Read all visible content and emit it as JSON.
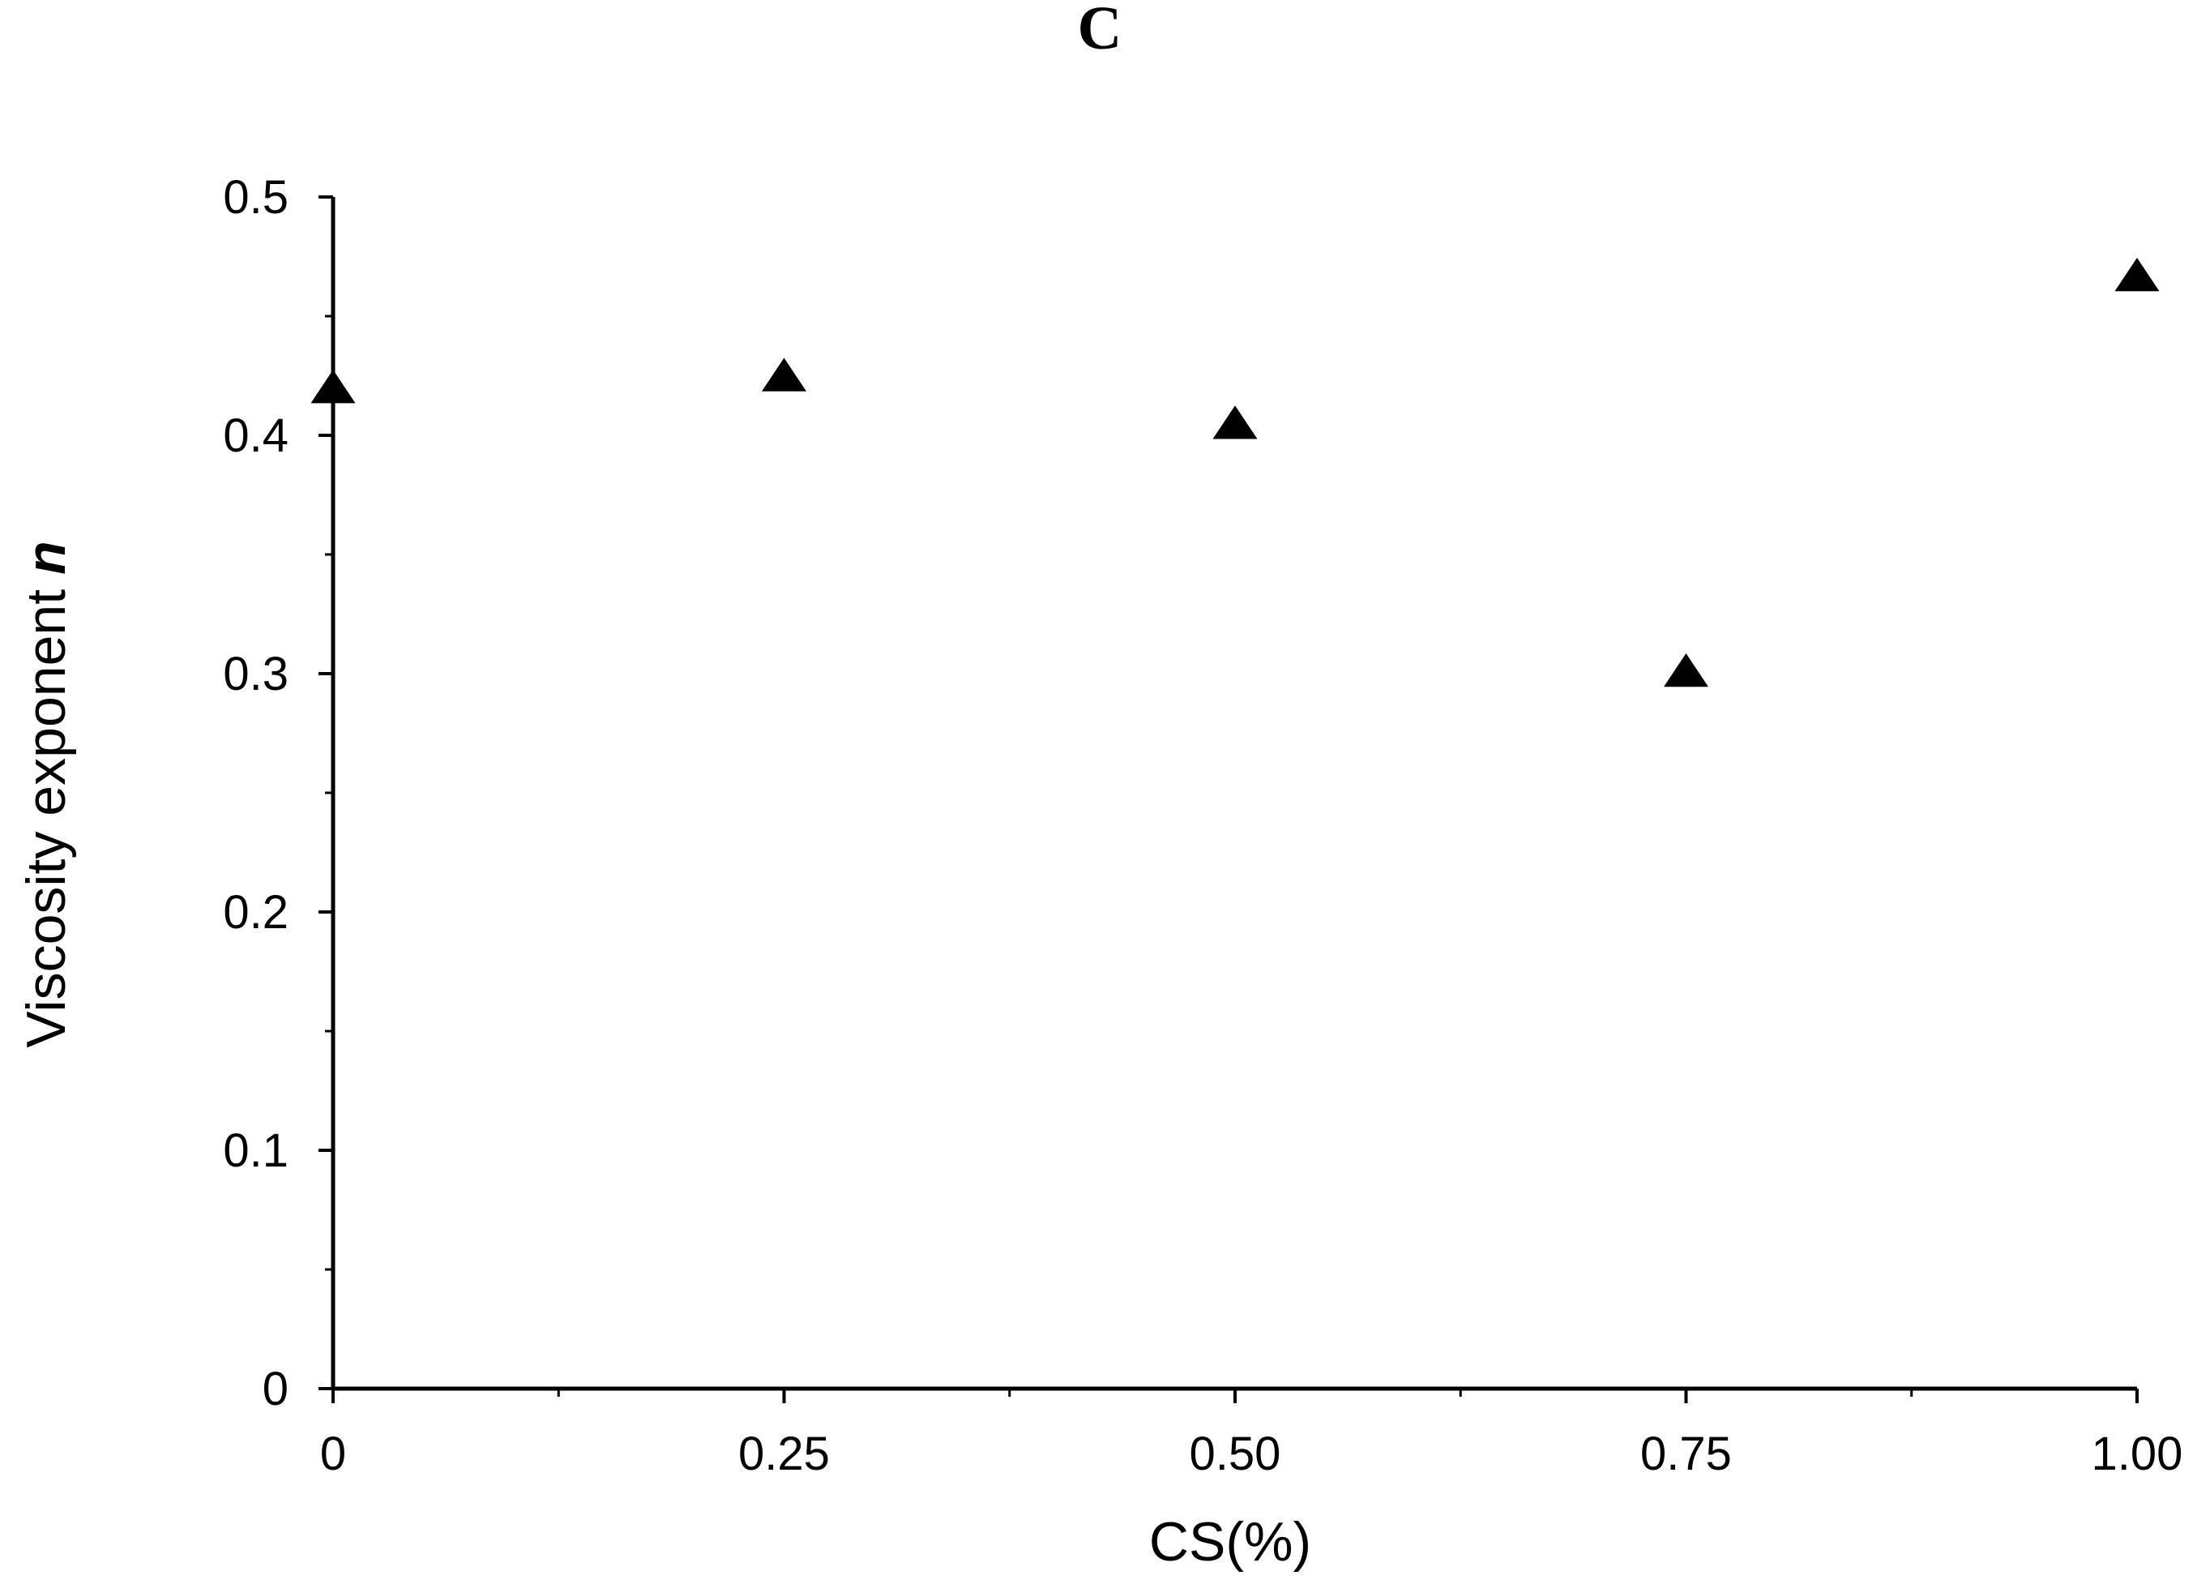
{
  "chart_data": {
    "type": "scatter",
    "panel_label": "C",
    "xlabel": "CS(%)",
    "ylabel": "Viscosity exponent",
    "ylabel_symbol": "n",
    "xlim": [
      0,
      1.0
    ],
    "ylim": [
      0,
      0.5
    ],
    "x_ticks": [
      0,
      0.25,
      0.5,
      0.75,
      1.0
    ],
    "x_tick_labels": [
      "0",
      "0.25",
      "0.50",
      "0.75",
      "1.00"
    ],
    "y_ticks": [
      0,
      0.1,
      0.2,
      0.3,
      0.4,
      0.5
    ],
    "y_tick_labels": [
      "0",
      "0.1",
      "0.2",
      "0.3",
      "0.4",
      "0.5"
    ],
    "grid": false,
    "marker": "triangle-up",
    "marker_color": "#000000",
    "series": [
      {
        "x": [
          0,
          0.25,
          0.5,
          0.75,
          1.0
        ],
        "y": [
          0.419,
          0.424,
          0.404,
          0.3,
          0.466
        ]
      }
    ]
  }
}
